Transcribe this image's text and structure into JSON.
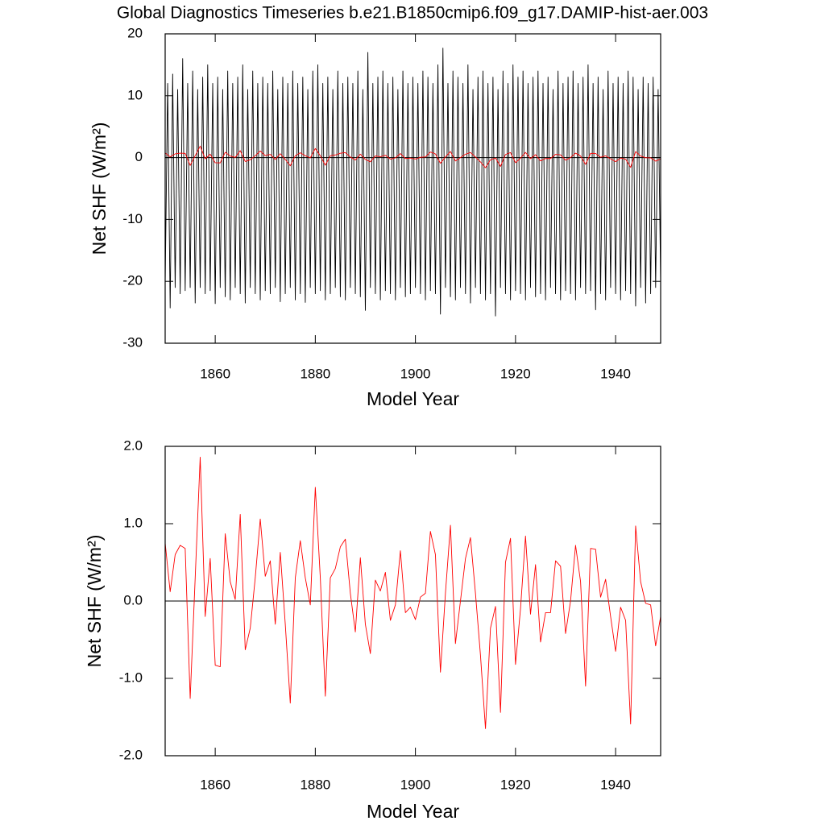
{
  "chart_data": [
    {
      "type": "line",
      "title": "Global Diagnostics Timeseries b.e21.B1850cmip6.f09_g17.DAMIP-hist-aer.003",
      "xlabel": "Model Year",
      "ylabel": "Net SHF (W/m²)",
      "xlim": [
        1850,
        1949
      ],
      "xticks": [
        1860,
        1880,
        1900,
        1920,
        1940
      ],
      "ylim": [
        -30,
        20
      ],
      "yticks": [
        -30,
        -20,
        -10,
        0,
        10,
        20
      ],
      "zero_line": true,
      "series": [
        {
          "color": "#000000",
          "x": [
            1850,
            1850.5,
            1851,
            1851.5,
            1852,
            1852.5,
            1853,
            1853.5,
            1854,
            1854.5,
            1855,
            1855.5,
            1856,
            1856.5,
            1857,
            1857.5,
            1858,
            1858.5,
            1859,
            1859.5,
            1860,
            1860.5,
            1861,
            1861.5,
            1862,
            1862.5,
            1863,
            1863.5,
            1864,
            1864.5,
            1865,
            1865.5,
            1866,
            1866.5,
            1867,
            1867.5,
            1868,
            1868.5,
            1869,
            1869.5,
            1870,
            1870.5,
            1871,
            1871.5,
            1872,
            1872.5,
            1873,
            1873.5,
            1874,
            1874.5,
            1875,
            1875.5,
            1876,
            1876.5,
            1877,
            1877.5,
            1878,
            1878.5,
            1879,
            1879.5,
            1880,
            1880.5,
            1881,
            1881.5,
            1882,
            1882.5,
            1883,
            1883.5,
            1884,
            1884.5,
            1885,
            1885.5,
            1886,
            1886.5,
            1887,
            1887.5,
            1888,
            1888.5,
            1889,
            1889.5,
            1890,
            1890.5,
            1891,
            1891.5,
            1892,
            1892.5,
            1893,
            1893.5,
            1894,
            1894.5,
            1895,
            1895.5,
            1896,
            1896.5,
            1897,
            1897.5,
            1898,
            1898.5,
            1899,
            1899.5,
            1900,
            1900.5,
            1901,
            1901.5,
            1902,
            1902.5,
            1903,
            1903.5,
            1904,
            1904.5,
            1905,
            1905.5,
            1906,
            1906.5,
            1907,
            1907.5,
            1908,
            1908.5,
            1909,
            1909.5,
            1910,
            1910.5,
            1911,
            1911.5,
            1912,
            1912.5,
            1913,
            1913.5,
            1914,
            1914.5,
            1915,
            1915.5,
            1916,
            1916.5,
            1917,
            1917.5,
            1918,
            1918.5,
            1919,
            1919.5,
            1920,
            1920.5,
            1921,
            1921.5,
            1922,
            1922.5,
            1923,
            1923.5,
            1924,
            1924.5,
            1925,
            1925.5,
            1926,
            1926.5,
            1927,
            1927.5,
            1928,
            1928.5,
            1929,
            1929.5,
            1930,
            1930.5,
            1931,
            1931.5,
            1932,
            1932.5,
            1933,
            1933.5,
            1934,
            1934.5,
            1935,
            1935.5,
            1936,
            1936.5,
            1937,
            1937.5,
            1938,
            1938.5,
            1939,
            1939.5,
            1940,
            1940.5,
            1941,
            1941.5,
            1942,
            1942.5,
            1943,
            1943.5,
            1944,
            1944.5,
            1945,
            1945.5,
            1946,
            1946.5,
            1947,
            1947.5,
            1948,
            1948.5,
            1949
          ],
          "values": [
            -20.5,
            12,
            -24.3,
            13.5,
            -21,
            11,
            -22,
            16,
            -21.5,
            12,
            -21,
            14,
            -23.5,
            11,
            -21,
            13,
            -22,
            15,
            -21.5,
            12,
            -23.6,
            13,
            -21,
            11,
            -22.5,
            14,
            -23,
            12,
            -21,
            13,
            -22,
            15,
            -23.5,
            11,
            -21,
            14,
            -22,
            12,
            -23,
            13,
            -21.5,
            12,
            -22,
            14,
            -21,
            11,
            -23.3,
            13,
            -22,
            12,
            -21,
            14,
            -23,
            12,
            -22,
            13,
            -23.4,
            11,
            -21,
            14,
            -22,
            15,
            -21.5,
            12,
            -23,
            13,
            -22,
            11,
            -21,
            14,
            -22.5,
            12,
            -23,
            13,
            -21,
            12,
            -22,
            14,
            -22.5,
            11,
            -24.7,
            17,
            -21,
            12,
            -22,
            13,
            -23,
            14,
            -21.5,
            12,
            -22,
            13,
            -23,
            11,
            -21,
            14,
            -22.5,
            12,
            -22,
            13,
            -21,
            12,
            -22,
            14,
            -23,
            13,
            -21.5,
            12,
            -22,
            15,
            -25.3,
            17.7,
            -21,
            12,
            -22.5,
            14,
            -23,
            13,
            -21,
            12,
            -22,
            15,
            -23.5,
            11,
            -21,
            13,
            -22,
            14,
            -23,
            12,
            -22,
            13,
            -25.6,
            11,
            -21,
            14,
            -22,
            12,
            -23,
            15,
            -21.5,
            13,
            -22,
            14,
            -23,
            12,
            -21,
            13,
            -22.5,
            14,
            -22,
            12,
            -23,
            13,
            -21,
            11,
            -22,
            14,
            -23,
            12,
            -21.5,
            13,
            -22,
            14,
            -23,
            12,
            -21,
            13,
            -22,
            15,
            -21.5,
            12,
            -24.6,
            13,
            -22,
            11,
            -23,
            14,
            -21,
            12,
            -22,
            13,
            -23,
            12,
            -21.5,
            14,
            -22,
            13,
            -24,
            11,
            -21,
            13,
            -23.5,
            12,
            -22,
            13,
            -21,
            11,
            -20
          ]
        },
        {
          "color": "#ff0000",
          "x": [
            1850,
            1851,
            1852,
            1853,
            1854,
            1855,
            1856,
            1857,
            1858,
            1859,
            1860,
            1861,
            1862,
            1863,
            1864,
            1865,
            1866,
            1867,
            1868,
            1869,
            1870,
            1871,
            1872,
            1873,
            1874,
            1875,
            1876,
            1877,
            1878,
            1879,
            1880,
            1881,
            1882,
            1883,
            1884,
            1885,
            1886,
            1887,
            1888,
            1889,
            1890,
            1891,
            1892,
            1893,
            1894,
            1895,
            1896,
            1897,
            1898,
            1899,
            1900,
            1901,
            1902,
            1903,
            1904,
            1905,
            1906,
            1907,
            1908,
            1909,
            1910,
            1911,
            1912,
            1913,
            1914,
            1915,
            1916,
            1917,
            1918,
            1919,
            1920,
            1921,
            1922,
            1923,
            1924,
            1925,
            1926,
            1927,
            1928,
            1929,
            1930,
            1931,
            1932,
            1933,
            1934,
            1935,
            1936,
            1937,
            1938,
            1939,
            1940,
            1941,
            1942,
            1943,
            1944,
            1945,
            1946,
            1947,
            1948,
            1949
          ],
          "values": [
            0.75,
            0.12,
            0.6,
            0.72,
            0.68,
            -1.26,
            0.3,
            1.86,
            -0.2,
            0.55,
            -0.83,
            -0.85,
            0.87,
            0.25,
            0.02,
            1.12,
            -0.63,
            -0.35,
            0.3,
            1.06,
            0.32,
            0.52,
            -0.3,
            0.63,
            -0.3,
            -1.32,
            0.3,
            0.78,
            0.3,
            -0.05,
            1.47,
            0.3,
            -1.23,
            0.3,
            0.42,
            0.7,
            0.8,
            0.1,
            -0.4,
            0.56,
            -0.3,
            -0.68,
            0.27,
            0.13,
            0.37,
            -0.25,
            -0.05,
            0.65,
            -0.15,
            -0.08,
            -0.24,
            0.05,
            0.1,
            0.9,
            0.6,
            -0.92,
            0.1,
            0.98,
            -0.55,
            0.0,
            0.55,
            0.82,
            0.1,
            -0.7,
            -1.65,
            -0.35,
            -0.07,
            -1.44,
            0.5,
            0.81,
            -0.82,
            -0.1,
            0.84,
            -0.17,
            0.47,
            -0.53,
            -0.15,
            -0.15,
            0.52,
            0.45,
            -0.42,
            0.0,
            0.72,
            0.25,
            -1.1,
            0.68,
            0.67,
            0.05,
            0.28,
            -0.2,
            -0.65,
            -0.08,
            -0.25,
            -1.59,
            0.97,
            0.25,
            -0.03,
            -0.05,
            -0.58,
            -0.2
          ]
        }
      ]
    },
    {
      "type": "line",
      "xlabel": "Model Year",
      "ylabel": "Net SHF (W/m²)",
      "xlim": [
        1850,
        1949
      ],
      "xticks": [
        1860,
        1880,
        1900,
        1920,
        1940
      ],
      "ylim": [
        -2,
        2
      ],
      "yticks": [
        {
          "value": -2,
          "label": "-2.0"
        },
        {
          "value": -1,
          "label": "-1.0"
        },
        {
          "value": 0,
          "label": "0.0"
        },
        {
          "value": 1,
          "label": "1.0"
        },
        {
          "value": 2,
          "label": "2.0"
        }
      ],
      "zero_line": true,
      "series": [
        {
          "color": "#ff0000",
          "x": [
            1850,
            1851,
            1852,
            1853,
            1854,
            1855,
            1856,
            1857,
            1858,
            1859,
            1860,
            1861,
            1862,
            1863,
            1864,
            1865,
            1866,
            1867,
            1868,
            1869,
            1870,
            1871,
            1872,
            1873,
            1874,
            1875,
            1876,
            1877,
            1878,
            1879,
            1880,
            1881,
            1882,
            1883,
            1884,
            1885,
            1886,
            1887,
            1888,
            1889,
            1890,
            1891,
            1892,
            1893,
            1894,
            1895,
            1896,
            1897,
            1898,
            1899,
            1900,
            1901,
            1902,
            1903,
            1904,
            1905,
            1906,
            1907,
            1908,
            1909,
            1910,
            1911,
            1912,
            1913,
            1914,
            1915,
            1916,
            1917,
            1918,
            1919,
            1920,
            1921,
            1922,
            1923,
            1924,
            1925,
            1926,
            1927,
            1928,
            1929,
            1930,
            1931,
            1932,
            1933,
            1934,
            1935,
            1936,
            1937,
            1938,
            1939,
            1940,
            1941,
            1942,
            1943,
            1944,
            1945,
            1946,
            1947,
            1948,
            1949
          ],
          "values": [
            0.75,
            0.12,
            0.6,
            0.72,
            0.68,
            -1.26,
            0.3,
            1.86,
            -0.2,
            0.55,
            -0.83,
            -0.85,
            0.87,
            0.25,
            0.02,
            1.12,
            -0.63,
            -0.35,
            0.3,
            1.06,
            0.32,
            0.52,
            -0.3,
            0.63,
            -0.3,
            -1.32,
            0.3,
            0.78,
            0.3,
            -0.05,
            1.47,
            0.3,
            -1.23,
            0.3,
            0.42,
            0.7,
            0.8,
            0.1,
            -0.4,
            0.56,
            -0.3,
            -0.68,
            0.27,
            0.13,
            0.37,
            -0.25,
            -0.05,
            0.65,
            -0.15,
            -0.08,
            -0.24,
            0.05,
            0.1,
            0.9,
            0.6,
            -0.92,
            0.1,
            0.98,
            -0.55,
            0.0,
            0.55,
            0.82,
            0.1,
            -0.7,
            -1.65,
            -0.35,
            -0.07,
            -1.44,
            0.5,
            0.81,
            -0.82,
            -0.1,
            0.84,
            -0.17,
            0.47,
            -0.53,
            -0.15,
            -0.15,
            0.52,
            0.45,
            -0.42,
            0.0,
            0.72,
            0.25,
            -1.1,
            0.68,
            0.67,
            0.05,
            0.28,
            -0.2,
            -0.65,
            -0.08,
            -0.25,
            -1.59,
            0.97,
            0.25,
            -0.03,
            -0.05,
            -0.58,
            -0.2
          ]
        }
      ]
    }
  ]
}
